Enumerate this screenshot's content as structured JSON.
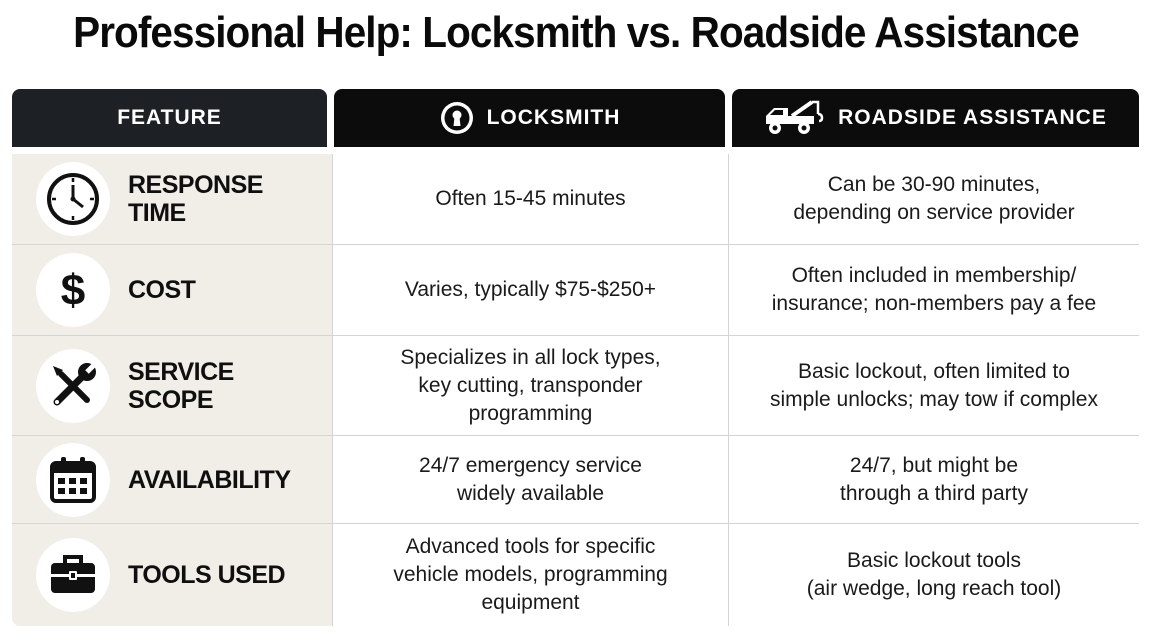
{
  "title": "Professional Help: Locksmith vs. Roadside Assistance",
  "headers": {
    "feature": "FEATURE",
    "locksmith": "LOCKSMITH",
    "roadside": "ROADSIDE ASSISTANCE"
  },
  "rows": [
    {
      "icon": "clock-icon",
      "feature": "RESPONSE TIME",
      "locksmith": "Often 15-45 minutes",
      "roadside": "Can be 30-90 minutes,\ndepending on service provider"
    },
    {
      "icon": "dollar-icon",
      "feature": "COST",
      "locksmith": "Varies, typically $75-$250+",
      "roadside": "Often included in membership/\ninsurance; non-members pay a fee"
    },
    {
      "icon": "wrench-screwdriver-icon",
      "feature": "SERVICE SCOPE",
      "locksmith": "Specializes in all lock types,\nkey cutting, transponder\nprogramming",
      "roadside": "Basic lockout, often limited to\nsimple unlocks; may tow if complex"
    },
    {
      "icon": "calendar-icon",
      "feature": "AVAILABILITY",
      "locksmith": "24/7 emergency service\nwidely available",
      "roadside": "24/7, but might be\nthrough a third party"
    },
    {
      "icon": "toolbox-icon",
      "feature": "TOOLS USED",
      "locksmith": "Advanced tools for specific\nvehicle models, programming\nequipment",
      "roadside": "Basic lockout tools\n(air wedge, long reach tool)"
    }
  ]
}
